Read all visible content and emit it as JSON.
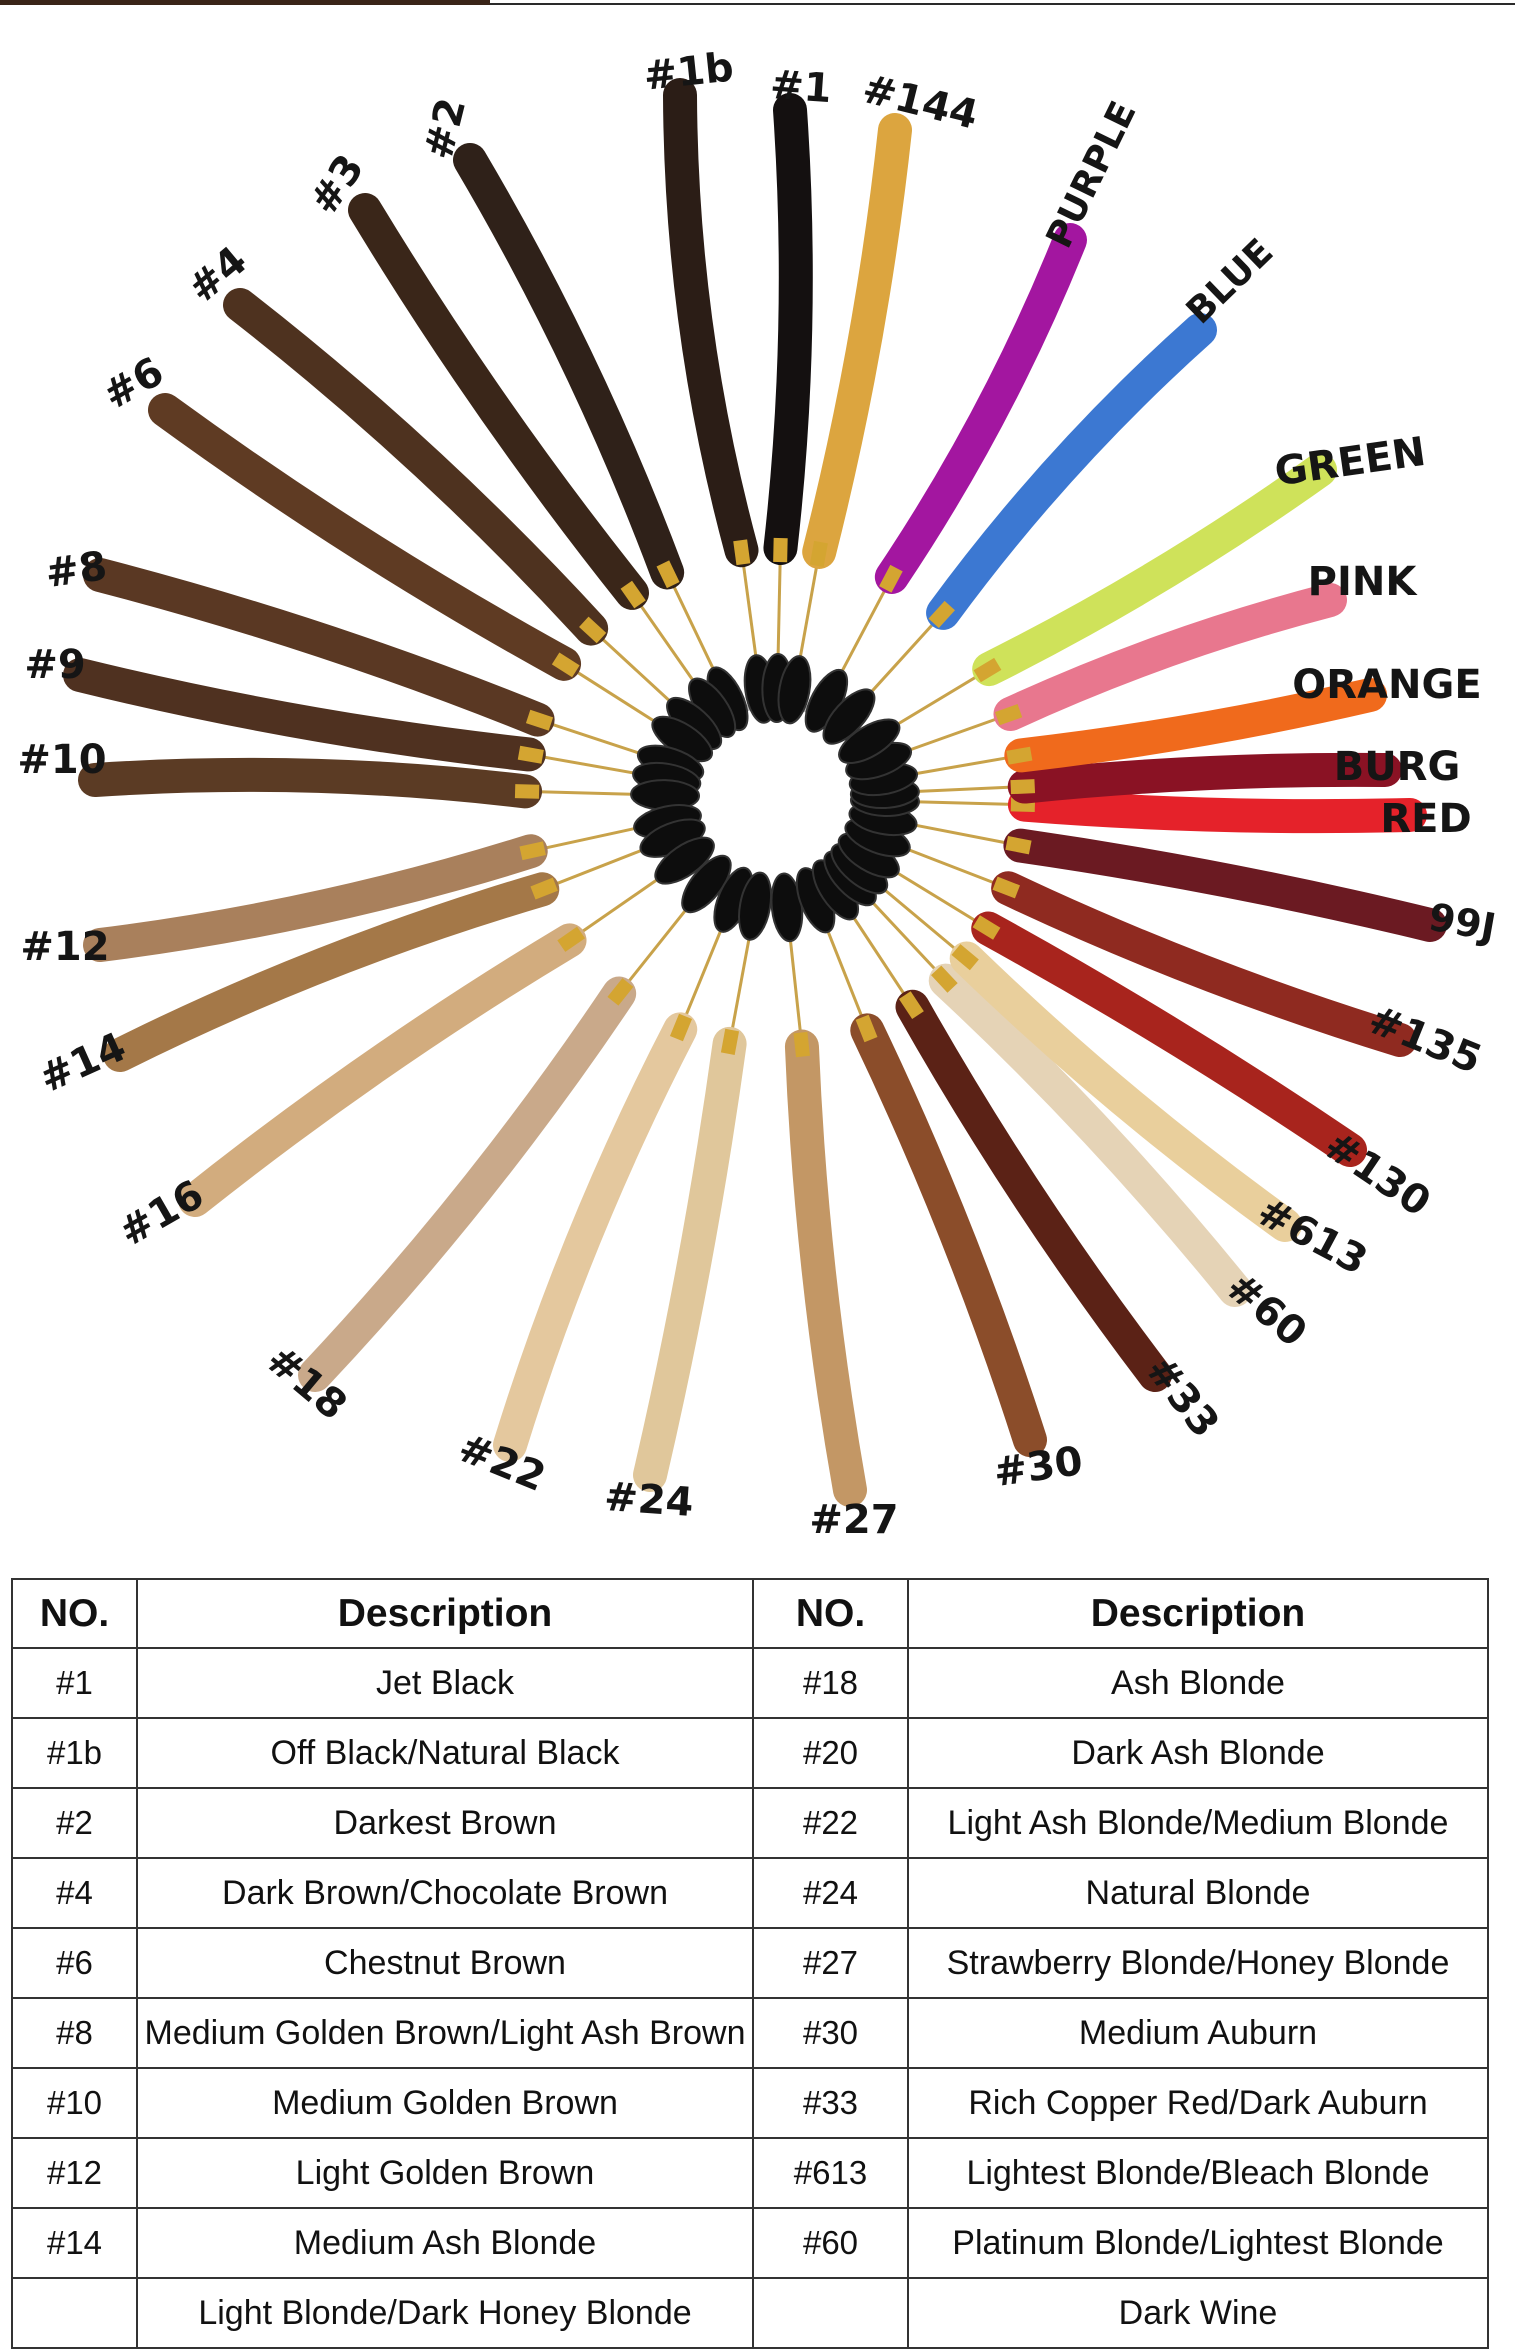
{
  "wheel": {
    "labels": {
      "n1b": "#1b",
      "n1": "#1",
      "n144": "#144",
      "purple": "PURPLE",
      "blue": "BLUE",
      "n2": "#2",
      "n3": "#3",
      "n4": "#4",
      "n6": "#6",
      "n8": "#8",
      "n9": "#9",
      "n10": "#10",
      "n12": "#12",
      "n14": "#14",
      "n16": "#16",
      "n18": "#18",
      "n22": "#22",
      "n24": "#24",
      "n27": "#27",
      "n30": "#30",
      "n33": "#33",
      "n60": "#60",
      "n613": "#613",
      "n130": "#130",
      "n135": "#135",
      "n99j": "99J",
      "red": "RED",
      "burg": "BURG",
      "orange": "ORANGE",
      "pink": "PINK",
      "green": "GREEN"
    },
    "colors": {
      "n1b": "#2b1d16",
      "n1": "#141010",
      "n144": "#dca53f",
      "purple": "#a316a0",
      "blue": "#3c78d2",
      "n2": "#2f2119",
      "n3": "#3a2619",
      "n4": "#4e321f",
      "n6": "#5f3b23",
      "n8": "#5a3823",
      "n9": "#4f3120",
      "n10": "#5b3b24",
      "n12": "#a9805c",
      "n14": "#a47848",
      "n16": "#d2ac7e",
      "n18": "#c9a98a",
      "n22": "#e4c89e",
      "n24": "#e0c79b",
      "n27": "#c39765",
      "n30": "#8b4d2a",
      "n33": "#5b2216",
      "n60": "#e5d3b6",
      "n613": "#e9cf9c",
      "n130": "#a8241d",
      "n135": "#8f2a20",
      "n99j": "#6b1a22",
      "red": "#e5222a",
      "burg": "#8a1224",
      "orange": "#f06a1c",
      "pink": "#e8778e",
      "green": "#cfe25a"
    }
  },
  "table": {
    "headers": {
      "no": "NO.",
      "description": "Description"
    },
    "rows": [
      {
        "left_no": "#1",
        "left_desc": "Jet Black",
        "right_no": "#18",
        "right_desc": "Ash Blonde"
      },
      {
        "left_no": "#1b",
        "left_desc": "Off Black/Natural Black",
        "right_no": "#20",
        "right_desc": "Dark Ash Blonde"
      },
      {
        "left_no": "#2",
        "left_desc": "Darkest Brown",
        "right_no": "#22",
        "right_desc": "Light Ash Blonde/Medium Blonde"
      },
      {
        "left_no": "#4",
        "left_desc": "Dark Brown/Chocolate Brown",
        "right_no": "#24",
        "right_desc": "Natural Blonde"
      },
      {
        "left_no": "#6",
        "left_desc": "Chestnut Brown",
        "right_no": "#27",
        "right_desc": "Strawberry Blonde/Honey Blonde"
      },
      {
        "left_no": "#8",
        "left_desc": "Medium Golden Brown/Light Ash Brown",
        "right_no": "#30",
        "right_desc": "Medium Auburn"
      },
      {
        "left_no": "#10",
        "left_desc": "Medium Golden Brown",
        "right_no": "#33",
        "right_desc": "Rich Copper Red/Dark Auburn"
      },
      {
        "left_no": "#12",
        "left_desc": "Light Golden Brown",
        "right_no": "#613",
        "right_desc": "Lightest Blonde/Bleach Blonde"
      },
      {
        "left_no": "#14",
        "left_desc": "Medium Ash Blonde",
        "right_no": "#60",
        "right_desc": "Platinum Blonde/Lightest Blonde"
      },
      {
        "left_no": "",
        "left_desc": "Light Blonde/Dark Honey Blonde",
        "right_no": "",
        "right_desc": "Dark Wine"
      }
    ]
  }
}
